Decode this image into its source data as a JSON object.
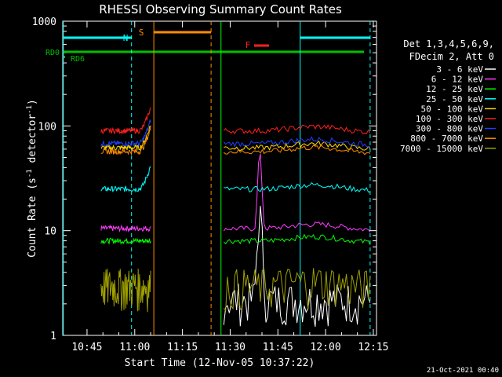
{
  "chart_data": {
    "type": "line",
    "title": "RHESSI Observing Summary Count Rates",
    "xlabel": "Start Time (12-Nov-05 10:37:22)",
    "ylabel_main": "Count Rate (s",
    "ylabel_sup1": "-1",
    "ylabel_mid": " detector",
    "ylabel_sup2": "-1",
    "ylabel_end": ")",
    "yscale": "log",
    "ylim": [
      1,
      1000
    ],
    "xlim_minutes": [
      10.62,
      12.25
    ],
    "x_ticks": [
      {
        "label": "10:45",
        "hours": 10.75
      },
      {
        "label": "11:00",
        "hours": 11.0
      },
      {
        "label": "11:15",
        "hours": 11.25
      },
      {
        "label": "11:30",
        "hours": 11.5
      },
      {
        "label": "11:45",
        "hours": 11.75
      },
      {
        "label": "12:00",
        "hours": 12.0
      },
      {
        "label": "12:15",
        "hours": 12.25
      }
    ],
    "y_ticks": [
      {
        "label": "1",
        "value": 1
      },
      {
        "label": "10",
        "value": 10
      },
      {
        "label": "100",
        "value": 100
      },
      {
        "label": "1000",
        "value": 1000
      }
    ],
    "legend_header": [
      "Det 1,3,4,5,6,9,",
      "FDecim 2, Att 0"
    ],
    "series": [
      {
        "name": "3 - 6 keV",
        "color": "#ffffff",
        "base": 1.6
      },
      {
        "name": "6 - 12 keV",
        "color": "#ff3cff",
        "base": 10.5
      },
      {
        "name": "12 - 25 keV",
        "color": "#00ff00",
        "base": 8.0
      },
      {
        "name": "25 - 50 keV",
        "color": "#00ffff",
        "base": 25
      },
      {
        "name": "50 - 100 keV",
        "color": "#ffd700",
        "base": 62
      },
      {
        "name": "100 - 300 keV",
        "color": "#ff2020",
        "base": 90
      },
      {
        "name": "300 - 800 keV",
        "color": "#2040ff",
        "base": 68
      },
      {
        "name": "800 - 7000 keV",
        "color": "#ff8c00",
        "base": 57
      },
      {
        "name": "7000 - 15000 keV",
        "color": "#a0a000",
        "base": 3.0
      }
    ],
    "flags": [
      {
        "label": "N",
        "color": "#00ffff"
      },
      {
        "label": "S",
        "color": "#ff8c00"
      },
      {
        "label": "F",
        "color": "#ff2020"
      },
      {
        "label": "RD0",
        "color": "#00c000"
      },
      {
        "label": "RD6",
        "color": "#00c000"
      }
    ],
    "data_gaps": [
      {
        "start": "11:05",
        "end": "11:28"
      }
    ]
  },
  "footer": {
    "timestamp": "21-Oct-2021 00:40"
  }
}
